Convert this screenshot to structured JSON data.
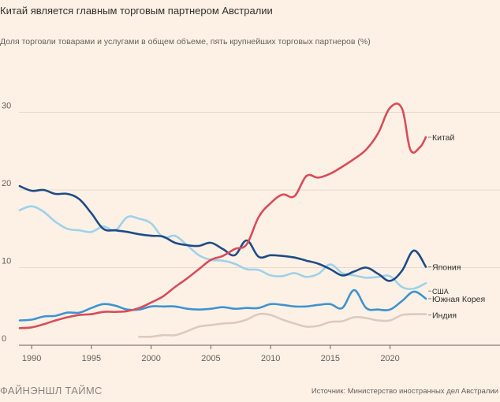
{
  "header": {
    "title": "Китай является главным торговым партнером Австралии",
    "subtitle": "Доля торговли товарами и услугами в общем объеме, пять крупнейших торговых партнеров (%)"
  },
  "footer": {
    "logo": "ФАЙНЭНШЛ ТАЙМС",
    "source": "Источник: Министерство иностранных дел Австралии"
  },
  "chart_data": {
    "type": "line",
    "xlim": [
      1989,
      2023
    ],
    "ylim": [
      0,
      33
    ],
    "x_ticks": [
      1990,
      1995,
      2000,
      2005,
      2010,
      2015,
      2020
    ],
    "y_ticks": [
      0,
      10,
      20,
      30
    ],
    "grid": "horizontal",
    "legend": "inline labels at line ends",
    "series": [
      {
        "name": "Китай",
        "color": "#d94c5a",
        "points": [
          [
            1989,
            2.2
          ],
          [
            1990,
            2.3
          ],
          [
            1991,
            2.7
          ],
          [
            1992,
            3.2
          ],
          [
            1993,
            3.6
          ],
          [
            1994,
            3.9
          ],
          [
            1995,
            4.0
          ],
          [
            1996,
            4.3
          ],
          [
            1997,
            4.3
          ],
          [
            1998,
            4.4
          ],
          [
            1999,
            4.8
          ],
          [
            2000,
            5.5
          ],
          [
            2001,
            6.3
          ],
          [
            2002,
            7.5
          ],
          [
            2003,
            8.6
          ],
          [
            2004,
            9.8
          ],
          [
            2005,
            11.0
          ],
          [
            2006,
            11.5
          ],
          [
            2007,
            12.4
          ],
          [
            2008,
            13.0
          ],
          [
            2009,
            16.5
          ],
          [
            2010,
            18.3
          ],
          [
            2011,
            19.4
          ],
          [
            2012,
            19.2
          ],
          [
            2013,
            21.8
          ],
          [
            2014,
            21.6
          ],
          [
            2015,
            22.1
          ],
          [
            2016,
            23.0
          ],
          [
            2017,
            24.0
          ],
          [
            2018,
            25.2
          ],
          [
            2019,
            27.3
          ],
          [
            2020,
            30.6
          ],
          [
            2021,
            30.5
          ],
          [
            2021.7,
            25.2
          ],
          [
            2022.5,
            25.5
          ],
          [
            2023,
            26.8
          ]
        ]
      },
      {
        "name": "Япония",
        "color": "#1f4b86",
        "points": [
          [
            1989,
            20.5
          ],
          [
            1990,
            19.9
          ],
          [
            1991,
            20.0
          ],
          [
            1992,
            19.5
          ],
          [
            1993,
            19.5
          ],
          [
            1994,
            18.8
          ],
          [
            1995,
            17.0
          ],
          [
            1996,
            15.0
          ],
          [
            1997,
            14.8
          ],
          [
            1998,
            14.6
          ],
          [
            1999,
            14.3
          ],
          [
            2000,
            14.1
          ],
          [
            2001,
            14.0
          ],
          [
            2002,
            13.2
          ],
          [
            2003,
            12.9
          ],
          [
            2004,
            12.8
          ],
          [
            2005,
            13.2
          ],
          [
            2006,
            12.4
          ],
          [
            2007,
            11.6
          ],
          [
            2008,
            13.5
          ],
          [
            2009,
            11.4
          ],
          [
            2010,
            11.6
          ],
          [
            2011,
            11.5
          ],
          [
            2012,
            11.3
          ],
          [
            2013,
            10.9
          ],
          [
            2014,
            10.5
          ],
          [
            2015,
            9.8
          ],
          [
            2016,
            9.0
          ],
          [
            2017,
            9.5
          ],
          [
            2018,
            10.0
          ],
          [
            2019,
            9.2
          ],
          [
            2020,
            8.3
          ],
          [
            2021,
            9.6
          ],
          [
            2022,
            12.2
          ],
          [
            2023,
            10.1
          ]
        ]
      },
      {
        "name": "США",
        "color": "#9fd2e9",
        "points": [
          [
            1989,
            17.4
          ],
          [
            1990,
            17.9
          ],
          [
            1991,
            17.2
          ],
          [
            1992,
            15.9
          ],
          [
            1993,
            15.0
          ],
          [
            1994,
            14.8
          ],
          [
            1995,
            14.6
          ],
          [
            1996,
            15.3
          ],
          [
            1997,
            14.8
          ],
          [
            1998,
            16.5
          ],
          [
            1999,
            16.3
          ],
          [
            2000,
            15.7
          ],
          [
            2001,
            13.9
          ],
          [
            2002,
            14.1
          ],
          [
            2003,
            12.9
          ],
          [
            2004,
            11.6
          ],
          [
            2005,
            11.0
          ],
          [
            2006,
            10.9
          ],
          [
            2007,
            10.5
          ],
          [
            2008,
            9.8
          ],
          [
            2009,
            9.7
          ],
          [
            2010,
            9.0
          ],
          [
            2011,
            8.9
          ],
          [
            2012,
            9.3
          ],
          [
            2013,
            8.8
          ],
          [
            2014,
            9.2
          ],
          [
            2015,
            10.4
          ],
          [
            2016,
            9.3
          ],
          [
            2017,
            9.0
          ],
          [
            2018,
            8.7
          ],
          [
            2019,
            8.8
          ],
          [
            2020,
            8.9
          ],
          [
            2021,
            7.5
          ],
          [
            2022,
            7.3
          ],
          [
            2023,
            8.0
          ]
        ]
      },
      {
        "name": "Южная Корея",
        "color": "#3f93cf",
        "points": [
          [
            1989,
            3.2
          ],
          [
            1990,
            3.3
          ],
          [
            1991,
            3.7
          ],
          [
            1992,
            3.8
          ],
          [
            1993,
            4.2
          ],
          [
            1994,
            4.2
          ],
          [
            1995,
            4.8
          ],
          [
            1996,
            5.3
          ],
          [
            1997,
            5.1
          ],
          [
            1998,
            4.6
          ],
          [
            1999,
            4.6
          ],
          [
            2000,
            5.0
          ],
          [
            2001,
            5.0
          ],
          [
            2002,
            5.0
          ],
          [
            2003,
            4.7
          ],
          [
            2004,
            4.6
          ],
          [
            2005,
            4.7
          ],
          [
            2006,
            4.9
          ],
          [
            2007,
            4.7
          ],
          [
            2008,
            4.8
          ],
          [
            2009,
            4.8
          ],
          [
            2010,
            5.3
          ],
          [
            2011,
            5.2
          ],
          [
            2012,
            5.0
          ],
          [
            2013,
            5.0
          ],
          [
            2014,
            5.2
          ],
          [
            2015,
            5.3
          ],
          [
            2016,
            4.8
          ],
          [
            2017,
            7.1
          ],
          [
            2018,
            4.8
          ],
          [
            2019,
            4.6
          ],
          [
            2020,
            4.6
          ],
          [
            2021,
            5.7
          ],
          [
            2022,
            6.9
          ],
          [
            2023,
            6.0
          ]
        ]
      },
      {
        "name": "Индия",
        "color": "#d9cbbd",
        "points": [
          [
            1999,
            1.1
          ],
          [
            2000,
            1.1
          ],
          [
            2001,
            1.3
          ],
          [
            2002,
            1.3
          ],
          [
            2003,
            1.8
          ],
          [
            2004,
            2.4
          ],
          [
            2005,
            2.6
          ],
          [
            2006,
            2.8
          ],
          [
            2007,
            2.9
          ],
          [
            2008,
            3.3
          ],
          [
            2009,
            4.0
          ],
          [
            2010,
            3.9
          ],
          [
            2011,
            3.3
          ],
          [
            2012,
            2.8
          ],
          [
            2013,
            2.4
          ],
          [
            2014,
            2.5
          ],
          [
            2015,
            3.0
          ],
          [
            2016,
            3.1
          ],
          [
            2017,
            3.6
          ],
          [
            2018,
            3.5
          ],
          [
            2019,
            3.2
          ],
          [
            2020,
            3.2
          ],
          [
            2021,
            3.9
          ],
          [
            2022,
            4.0
          ],
          [
            2023,
            4.0
          ]
        ]
      }
    ]
  }
}
